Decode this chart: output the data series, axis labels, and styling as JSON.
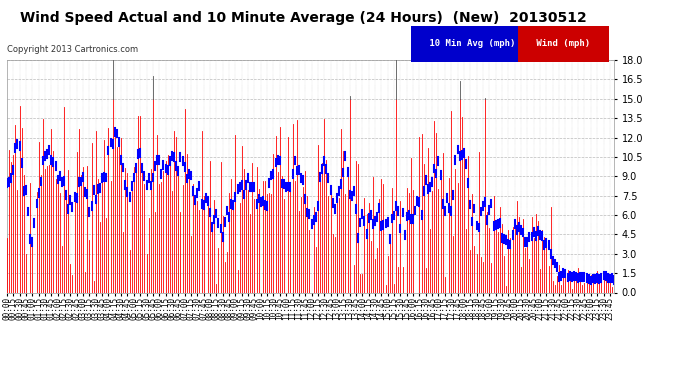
{
  "title": "Wind Speed Actual and 10 Minute Average (24 Hours)  (New)  20130512",
  "copyright": "Copyright 2013 Cartronics.com",
  "legend_label1": "10 Min Avg (mph)",
  "legend_label2": "Wind (mph)",
  "ymin": 0.0,
  "ymax": 18.0,
  "yticks": [
    0.0,
    1.5,
    3.0,
    4.5,
    6.0,
    7.5,
    9.0,
    10.5,
    12.0,
    13.5,
    15.0,
    16.5,
    18.0
  ],
  "bg_color": "#ffffff",
  "plot_bg": "#ffffff",
  "grid_color": "#bbbbbb",
  "wind_color": "#ff0000",
  "avg_color": "#0000ff",
  "dark_color": "#555555",
  "title_fontsize": 10,
  "copyright_fontsize": 6,
  "legend_fontsize": 6.5,
  "ylabel_fontsize": 7,
  "xlabel_fontsize": 5.5
}
